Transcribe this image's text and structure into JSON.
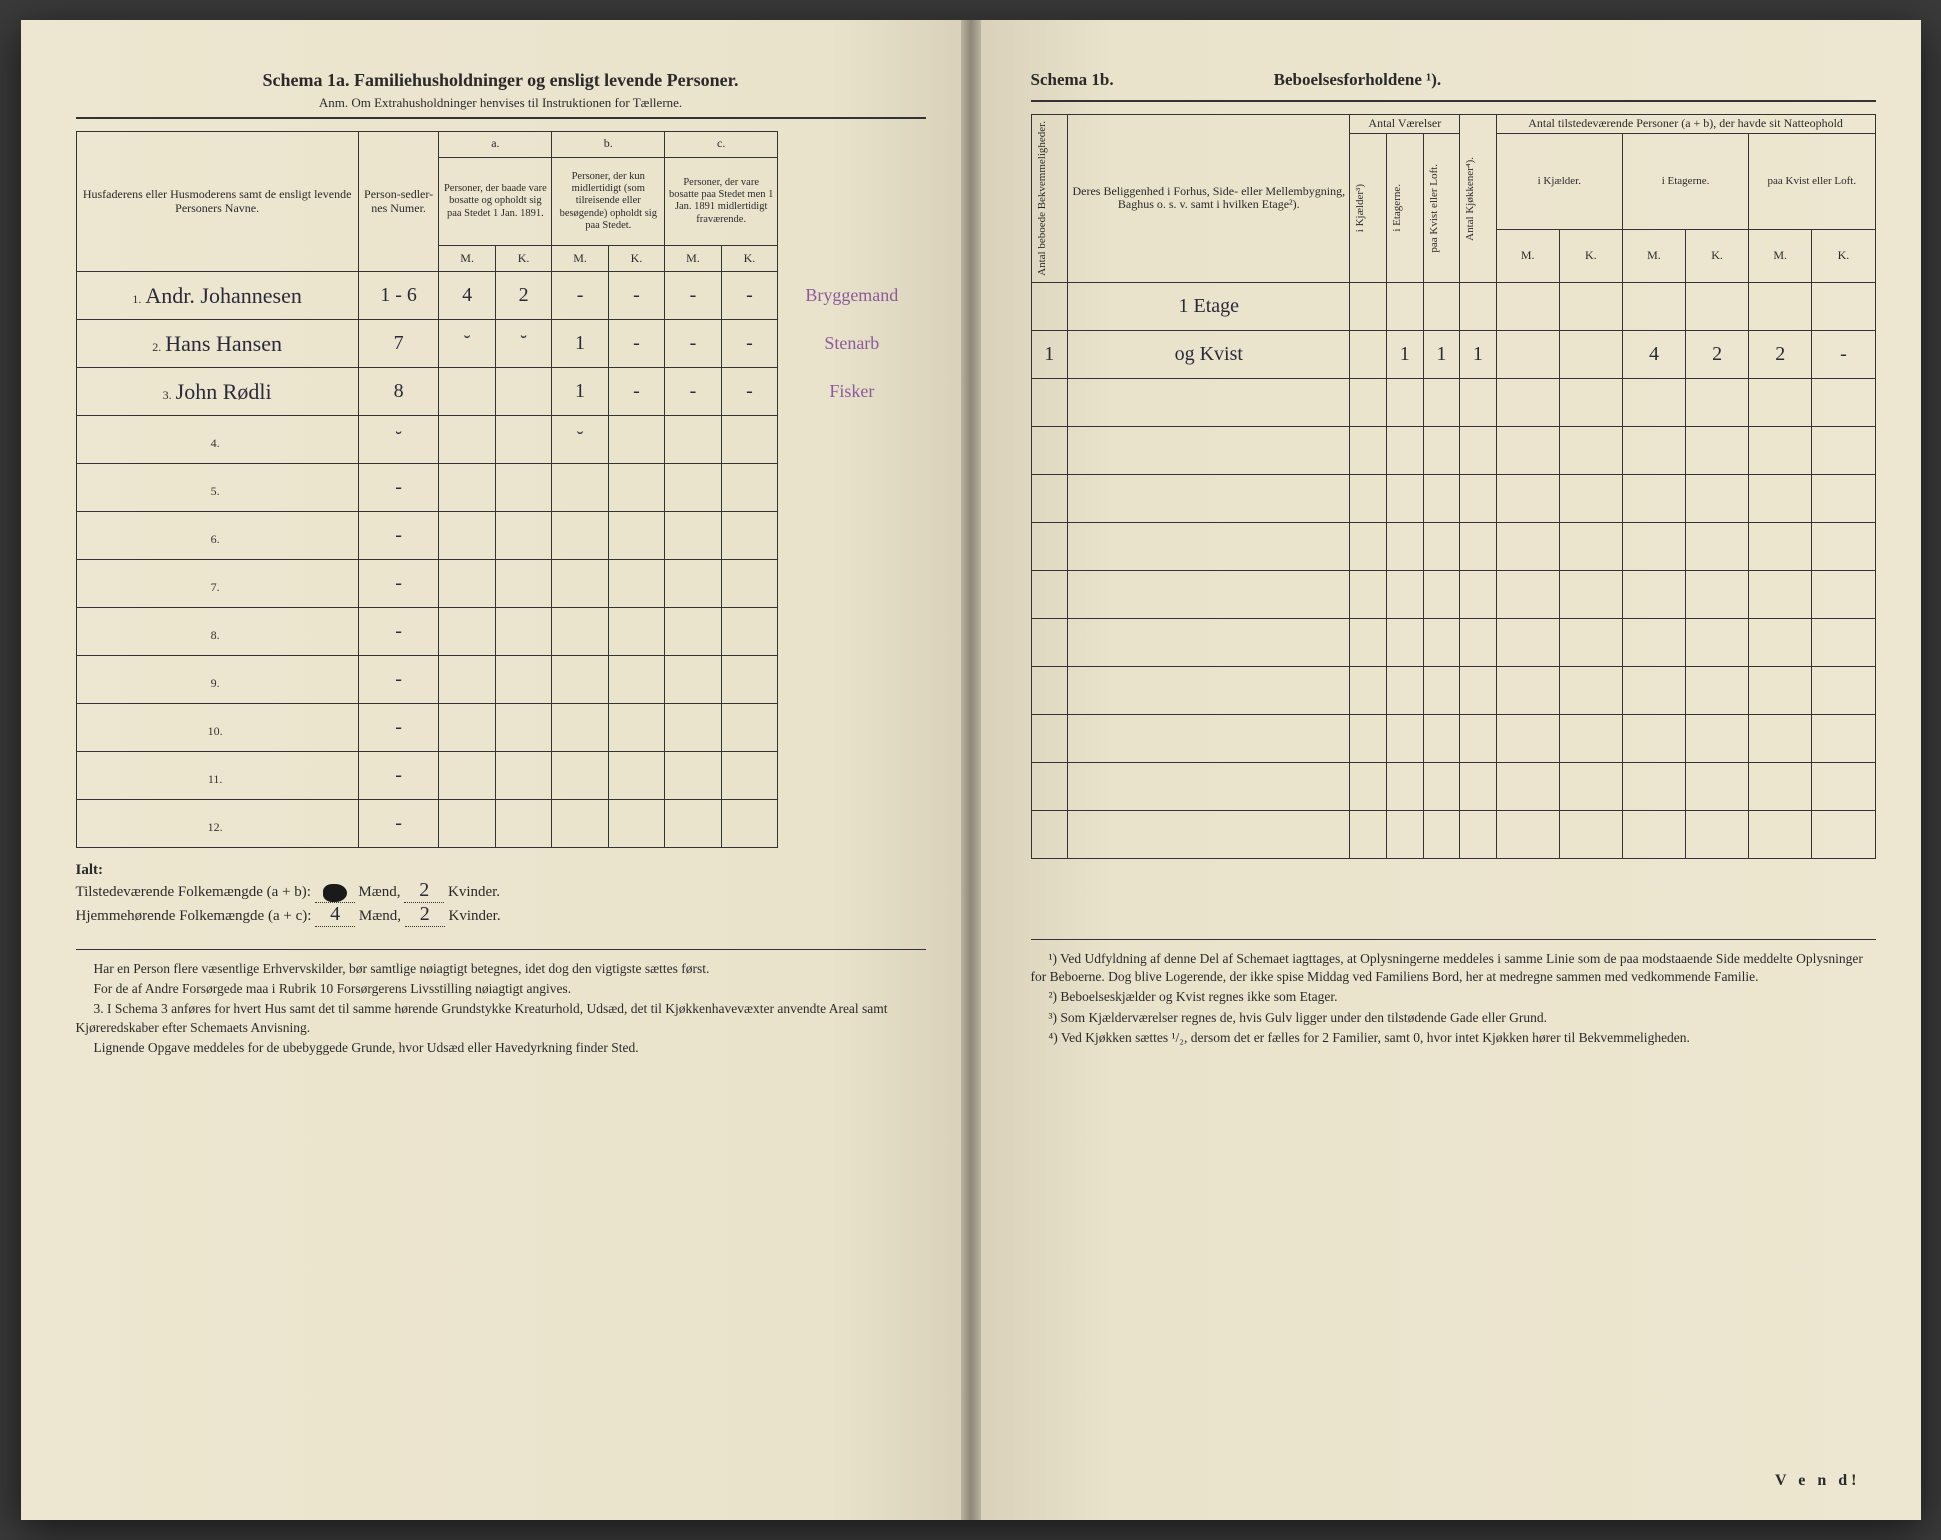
{
  "left": {
    "title": "Schema 1a.  Familiehusholdninger og ensligt levende Personer.",
    "subtitle": "Anm. Om Extrahusholdninger henvises til Instruktionen for Tællerne.",
    "headers": {
      "col1": "Husfaderens eller Husmoderens samt de ensligt levende Personers Navne.",
      "col2": "Person-sedler-nes Numer.",
      "a_label": "a.",
      "a_text": "Personer, der baade vare bosatte og opholdt sig paa Stedet 1 Jan. 1891.",
      "b_label": "b.",
      "b_text": "Personer, der kun midlertidigt (som tilreisende eller besøgende) opholdt sig paa Stedet.",
      "c_label": "c.",
      "c_text": "Personer, der vare bosatte paa Stedet men 1 Jan. 1891 midlertidigt fraværende.",
      "m": "M.",
      "k": "K."
    },
    "rows": [
      {
        "n": "1.",
        "name": "Andr. Johannesen",
        "num": "1 - 6",
        "aM": "4",
        "aK": "2",
        "bM": "-",
        "bK": "-",
        "cM": "-",
        "cK": "-",
        "note": "Bryggemand"
      },
      {
        "n": "2.",
        "name": "Hans Hansen",
        "num": "7",
        "aM": "˘",
        "aK": "˘",
        "bM": "1",
        "bK": "-",
        "cM": "-",
        "cK": "-",
        "note": "Stenarb"
      },
      {
        "n": "3.",
        "name": "John Rødli",
        "num": "8",
        "aM": "",
        "aK": "",
        "bM": "1",
        "bK": "-",
        "cM": "-",
        "cK": "-",
        "note": "Fisker"
      },
      {
        "n": "4.",
        "name": "",
        "num": "˘",
        "aM": "",
        "aK": "",
        "bM": "˘",
        "bK": "",
        "cM": "",
        "cK": "",
        "note": ""
      },
      {
        "n": "5.",
        "name": "",
        "num": "-",
        "aM": "",
        "aK": "",
        "bM": "",
        "bK": "",
        "cM": "",
        "cK": "",
        "note": ""
      },
      {
        "n": "6.",
        "name": "",
        "num": "-",
        "aM": "",
        "aK": "",
        "bM": "",
        "bK": "",
        "cM": "",
        "cK": "",
        "note": ""
      },
      {
        "n": "7.",
        "name": "",
        "num": "-",
        "aM": "",
        "aK": "",
        "bM": "",
        "bK": "",
        "cM": "",
        "cK": "",
        "note": ""
      },
      {
        "n": "8.",
        "name": "",
        "num": "-",
        "aM": "",
        "aK": "",
        "bM": "",
        "bK": "",
        "cM": "",
        "cK": "",
        "note": ""
      },
      {
        "n": "9.",
        "name": "",
        "num": "-",
        "aM": "",
        "aK": "",
        "bM": "",
        "bK": "",
        "cM": "",
        "cK": "",
        "note": ""
      },
      {
        "n": "10.",
        "name": "",
        "num": "-",
        "aM": "",
        "aK": "",
        "bM": "",
        "bK": "",
        "cM": "",
        "cK": "",
        "note": ""
      },
      {
        "n": "11.",
        "name": "",
        "num": "-",
        "aM": "",
        "aK": "",
        "bM": "",
        "bK": "",
        "cM": "",
        "cK": "",
        "note": ""
      },
      {
        "n": "12.",
        "name": "",
        "num": "-",
        "aM": "",
        "aK": "",
        "bM": "",
        "bK": "",
        "cM": "",
        "cK": "",
        "note": ""
      }
    ],
    "totals": {
      "ialt": "Ialt:",
      "line1a": "Tilstedeværende Folkemængde (a + b):",
      "line1_m": "",
      "maend": "Mænd,",
      "line1_k": "2",
      "kvinder": "Kvinder.",
      "line2a": "Hjemmehørende Folkemængde (a + c):",
      "line2_m": "4",
      "line2_k": "2"
    },
    "footnotes": [
      "Har en Person flere væsentlige Erhvervskilder, bør samtlige nøiagtigt betegnes, idet dog den vigtigste sættes først.",
      "For de af Andre Forsørgede maa i Rubrik 10 Forsørgerens Livsstilling nøiagtigt angives.",
      "3. I Schema 3 anføres for hvert Hus samt det til samme hørende Grundstykke Kreaturhold, Udsæd, det til Kjøkkenhavevæxter anvendte Areal samt Kjøreredskaber efter Schemaets Anvisning.",
      "Lignende Opgave meddeles for de ubebyggede Grunde, hvor Udsæd eller Havedyrkning finder Sted."
    ]
  },
  "right": {
    "title_a": "Schema 1b.",
    "title_b": "Beboelsesforholdene ¹).",
    "headers": {
      "v1": "Antal beboede Bekvemmeligheder.",
      "col2": "Deres Beliggenhed i Forhus, Side- eller Mellembygning, Baghus o. s. v. samt i hvilken Etage²).",
      "grp_v": "Antal Værelser",
      "v_kj": "i Kjælder³)",
      "v_et": "i Etagerne.",
      "v_kv": "paa Kvist eller Loft.",
      "v_kjok": "Antal Kjøkkener⁴).",
      "grp_p": "Antal tilstedeværende Personer (a + b), der havde sit Natteophold",
      "p_kj": "i Kjælder.",
      "p_et": "i Etagerne.",
      "p_kv": "paa Kvist eller Loft.",
      "m": "M.",
      "k": "K."
    },
    "rows": [
      {
        "bek": "",
        "loc": "1 Etage",
        "kj": "",
        "et": "",
        "kv": "",
        "kjok": "",
        "pkjM": "",
        "pkjK": "",
        "petM": "",
        "petK": "",
        "pkvM": "",
        "pkvK": ""
      },
      {
        "bek": "1",
        "loc": "og Kvist",
        "kj": "",
        "et": "1",
        "kv": "1",
        "kjok": "1",
        "pkjM": "",
        "pkjK": "",
        "petM": "4",
        "petK": "2",
        "pkvM": "2",
        "pkvK": "-"
      },
      {
        "bek": "",
        "loc": "",
        "kj": "",
        "et": "",
        "kv": "",
        "kjok": "",
        "pkjM": "",
        "pkjK": "",
        "petM": "",
        "petK": "",
        "pkvM": "",
        "pkvK": ""
      },
      {
        "bek": "",
        "loc": "",
        "kj": "",
        "et": "",
        "kv": "",
        "kjok": "",
        "pkjM": "",
        "pkjK": "",
        "petM": "",
        "petK": "",
        "pkvM": "",
        "pkvK": ""
      },
      {
        "bek": "",
        "loc": "",
        "kj": "",
        "et": "",
        "kv": "",
        "kjok": "",
        "pkjM": "",
        "pkjK": "",
        "petM": "",
        "petK": "",
        "pkvM": "",
        "pkvK": ""
      },
      {
        "bek": "",
        "loc": "",
        "kj": "",
        "et": "",
        "kv": "",
        "kjok": "",
        "pkjM": "",
        "pkjK": "",
        "petM": "",
        "petK": "",
        "pkvM": "",
        "pkvK": ""
      },
      {
        "bek": "",
        "loc": "",
        "kj": "",
        "et": "",
        "kv": "",
        "kjok": "",
        "pkjM": "",
        "pkjK": "",
        "petM": "",
        "petK": "",
        "pkvM": "",
        "pkvK": ""
      },
      {
        "bek": "",
        "loc": "",
        "kj": "",
        "et": "",
        "kv": "",
        "kjok": "",
        "pkjM": "",
        "pkjK": "",
        "petM": "",
        "petK": "",
        "pkvM": "",
        "pkvK": ""
      },
      {
        "bek": "",
        "loc": "",
        "kj": "",
        "et": "",
        "kv": "",
        "kjok": "",
        "pkjM": "",
        "pkjK": "",
        "petM": "",
        "petK": "",
        "pkvM": "",
        "pkvK": ""
      },
      {
        "bek": "",
        "loc": "",
        "kj": "",
        "et": "",
        "kv": "",
        "kjok": "",
        "pkjM": "",
        "pkjK": "",
        "petM": "",
        "petK": "",
        "pkvM": "",
        "pkvK": ""
      },
      {
        "bek": "",
        "loc": "",
        "kj": "",
        "et": "",
        "kv": "",
        "kjok": "",
        "pkjM": "",
        "pkjK": "",
        "petM": "",
        "petK": "",
        "pkvM": "",
        "pkvK": ""
      },
      {
        "bek": "",
        "loc": "",
        "kj": "",
        "et": "",
        "kv": "",
        "kjok": "",
        "pkjM": "",
        "pkjK": "",
        "petM": "",
        "petK": "",
        "pkvM": "",
        "pkvK": ""
      }
    ],
    "footnotes": [
      "¹) Ved Udfyldning af denne Del af Schemaet iagttages, at Oplysningerne meddeles i samme Linie som de paa modstaaende Side meddelte Oplysninger for Beboerne. Dog blive Logerende, der ikke spise Middag ved Familiens Bord, her at medregne sammen med vedkommende Familie.",
      "²) Beboelseskjælder og Kvist regnes ikke som Etager.",
      "³) Som Kjælderværelser regnes de, hvis Gulv ligger under den tilstødende Gade eller Grund.",
      "⁴) Ved Kjøkken sættes ¹/₂, dersom det er fælles for 2 Familier, samt 0, hvor intet Kjøkken hører til Bekvemmeligheden."
    ],
    "vend": "V e n d!"
  }
}
